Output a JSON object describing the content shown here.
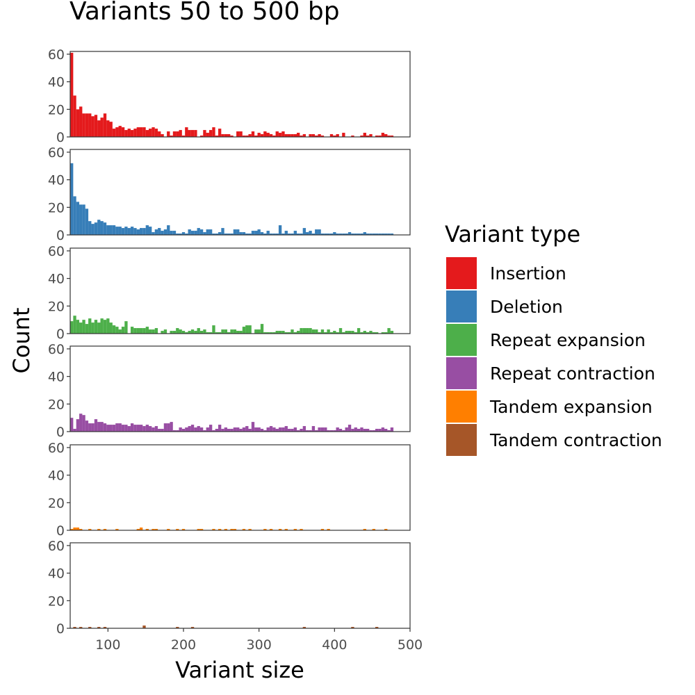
{
  "chart_data": {
    "type": "bar",
    "title": "Variants 50 to 500 bp",
    "xlabel": "Variant size",
    "ylabel": "Count",
    "xlim": [
      50,
      500
    ],
    "ylim": [
      0,
      62
    ],
    "x_ticks": [
      100,
      200,
      300,
      400,
      500
    ],
    "y_ticks": [
      0,
      20,
      40,
      60
    ],
    "bin_start": 50,
    "bin_width": 4,
    "legend": {
      "title": "Variant type",
      "placement": "right"
    },
    "series": [
      {
        "name": "Insertion",
        "color": "#e41a1c",
        "values": [
          61,
          30,
          20,
          22,
          17,
          17,
          17,
          15,
          16,
          12,
          14,
          17,
          12,
          11,
          6,
          7,
          8,
          7,
          5,
          6,
          5,
          6,
          7,
          7,
          7,
          5,
          6,
          7,
          6,
          4,
          2,
          0,
          4,
          1,
          4,
          4,
          5,
          1,
          7,
          5,
          5,
          5,
          0,
          1,
          5,
          3,
          5,
          7,
          1,
          6,
          2,
          2,
          2,
          1,
          0,
          4,
          4,
          1,
          1,
          2,
          4,
          1,
          3,
          2,
          4,
          3,
          2,
          1,
          4,
          3,
          4,
          2,
          2,
          2,
          2,
          3,
          1,
          2,
          0,
          2,
          2,
          1,
          2,
          1,
          0,
          0,
          2,
          1,
          2,
          0,
          3,
          0,
          0,
          1,
          0,
          0,
          1,
          3,
          1,
          2,
          0,
          1,
          1,
          3,
          2,
          1,
          1
        ]
      },
      {
        "name": "Deletion",
        "color": "#377eb8",
        "values": [
          52,
          28,
          24,
          22,
          22,
          19,
          10,
          8,
          9,
          11,
          10,
          9,
          7,
          7,
          7,
          6,
          6,
          5,
          6,
          5,
          6,
          5,
          4,
          5,
          5,
          7,
          6,
          2,
          4,
          5,
          3,
          4,
          7,
          3,
          3,
          1,
          1,
          2,
          1,
          4,
          3,
          3,
          5,
          4,
          2,
          4,
          4,
          1,
          1,
          2,
          5,
          1,
          1,
          1,
          4,
          4,
          2,
          2,
          1,
          1,
          3,
          3,
          4,
          2,
          1,
          3,
          1,
          1,
          1,
          7,
          1,
          3,
          1,
          1,
          3,
          1,
          1,
          5,
          2,
          3,
          1,
          4,
          4,
          1,
          1,
          1,
          1,
          2,
          1,
          1,
          1,
          1,
          2,
          1,
          1,
          1,
          1,
          2,
          1,
          1,
          1,
          1,
          1,
          1,
          1,
          1,
          1
        ]
      },
      {
        "name": "Repeat expansion",
        "color": "#4daf4a",
        "values": [
          9,
          13,
          10,
          8,
          10,
          7,
          11,
          8,
          10,
          8,
          11,
          10,
          11,
          8,
          6,
          5,
          3,
          5,
          9,
          0,
          5,
          4,
          4,
          4,
          4,
          5,
          3,
          3,
          4,
          0,
          2,
          3,
          0,
          2,
          2,
          4,
          3,
          2,
          1,
          2,
          3,
          2,
          4,
          2,
          3,
          1,
          1,
          6,
          1,
          1,
          3,
          3,
          1,
          3,
          3,
          2,
          2,
          5,
          6,
          6,
          0,
          3,
          3,
          7,
          1,
          1,
          1,
          1,
          2,
          2,
          2,
          1,
          1,
          3,
          1,
          2,
          4,
          4,
          4,
          4,
          3,
          3,
          1,
          3,
          1,
          3,
          1,
          2,
          1,
          4,
          1,
          2,
          2,
          2,
          1,
          4,
          1,
          2,
          1,
          2,
          1,
          1,
          0,
          1,
          1,
          4,
          2
        ]
      },
      {
        "name": "Repeat contraction",
        "color": "#984ea3",
        "values": [
          10,
          2,
          9,
          13,
          12,
          8,
          6,
          6,
          9,
          7,
          7,
          6,
          5,
          5,
          5,
          6,
          6,
          5,
          5,
          4,
          6,
          5,
          5,
          5,
          4,
          5,
          4,
          3,
          4,
          2,
          2,
          6,
          6,
          7,
          1,
          1,
          3,
          2,
          3,
          4,
          5,
          3,
          4,
          3,
          1,
          3,
          5,
          1,
          2,
          5,
          2,
          3,
          2,
          2,
          3,
          3,
          2,
          3,
          4,
          2,
          7,
          3,
          3,
          2,
          1,
          3,
          4,
          3,
          2,
          3,
          3,
          4,
          2,
          2,
          3,
          1,
          2,
          4,
          1,
          1,
          4,
          1,
          3,
          3,
          3,
          1,
          1,
          1,
          3,
          2,
          1,
          3,
          5,
          2,
          3,
          2,
          3,
          2,
          2,
          1,
          1,
          2,
          2,
          3,
          2,
          1,
          3
        ]
      },
      {
        "name": "Tandem expansion",
        "color": "#ff7f00",
        "values": [
          1,
          2,
          2,
          1,
          0,
          0,
          1,
          0,
          0,
          1,
          0,
          1,
          0,
          0,
          0,
          1,
          0,
          0,
          0,
          0,
          0,
          0,
          1,
          2,
          0,
          1,
          0,
          1,
          1,
          0,
          0,
          0,
          1,
          0,
          0,
          1,
          0,
          1,
          0,
          0,
          0,
          0,
          1,
          1,
          0,
          0,
          0,
          1,
          0,
          1,
          0,
          1,
          0,
          1,
          1,
          0,
          0,
          1,
          0,
          1,
          0,
          0,
          0,
          0,
          1,
          0,
          1,
          0,
          0,
          1,
          0,
          1,
          0,
          0,
          1,
          0,
          1,
          0,
          0,
          0,
          0,
          0,
          0,
          1,
          0,
          1,
          0,
          0,
          0,
          0,
          0,
          0,
          0,
          0,
          0,
          0,
          0,
          1,
          0,
          0,
          1,
          0,
          0,
          0,
          1,
          0,
          0
        ]
      },
      {
        "name": "Tandem contraction",
        "color": "#a65628",
        "values": [
          0,
          1,
          0,
          1,
          0,
          0,
          1,
          0,
          0,
          1,
          0,
          1,
          0,
          0,
          0,
          0,
          0,
          0,
          0,
          0,
          0,
          0,
          0,
          0,
          2,
          0,
          0,
          0,
          0,
          0,
          0,
          0,
          0,
          0,
          0,
          1,
          0,
          0,
          0,
          0,
          1,
          0,
          0,
          0,
          0,
          0,
          0,
          0,
          0,
          0,
          0,
          0,
          0,
          0,
          0,
          0,
          0,
          0,
          0,
          0,
          0,
          0,
          0,
          0,
          0,
          0,
          0,
          0,
          0,
          0,
          0,
          0,
          0,
          0,
          0,
          0,
          0,
          1,
          0,
          0,
          0,
          0,
          0,
          0,
          0,
          0,
          0,
          0,
          0,
          0,
          0,
          0,
          0,
          1,
          0,
          0,
          0,
          0,
          0,
          0,
          0,
          1,
          0,
          0,
          0,
          0,
          0
        ]
      }
    ]
  }
}
